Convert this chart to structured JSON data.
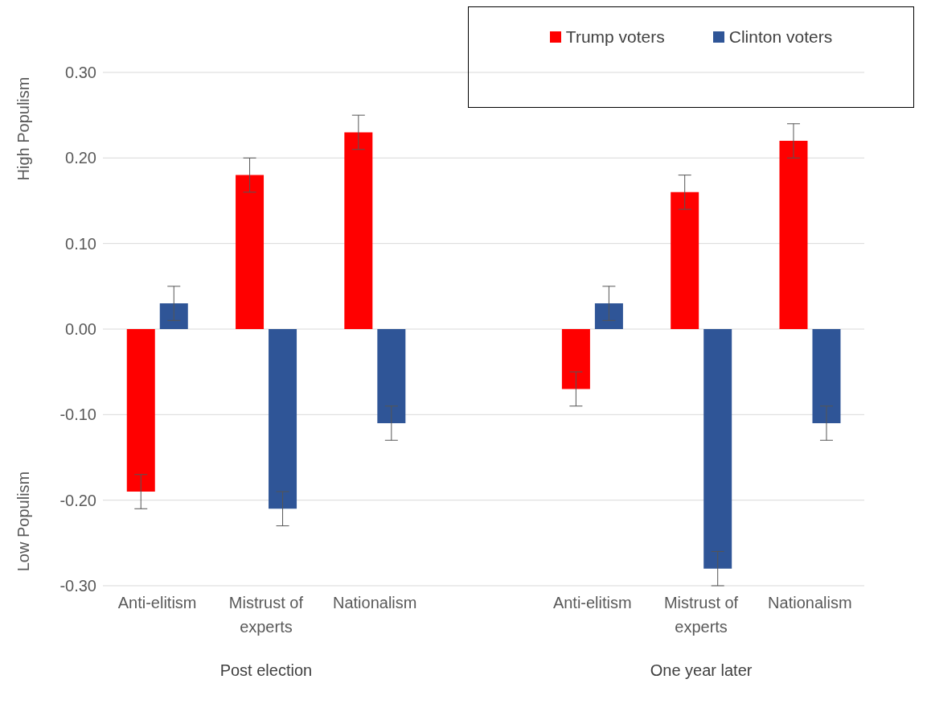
{
  "chart_data": {
    "type": "bar",
    "categories": [
      "Anti-elitism",
      "Mistrust of experts",
      "Nationalism",
      null,
      "Anti-elitism",
      "Mistrust of experts",
      "Nationalism"
    ],
    "series": [
      {
        "name": "Trump voters",
        "color": "#ff0000",
        "values": [
          -0.19,
          0.18,
          0.23,
          null,
          -0.07,
          0.16,
          0.22
        ],
        "errors": [
          0.02,
          0.02,
          0.02,
          null,
          0.02,
          0.02,
          0.02
        ]
      },
      {
        "name": "Clinton voters",
        "color": "#2f5597",
        "values": [
          0.03,
          -0.21,
          -0.11,
          null,
          0.03,
          -0.28,
          -0.11
        ],
        "errors": [
          0.02,
          0.02,
          0.02,
          null,
          0.02,
          0.02,
          0.02
        ]
      }
    ],
    "ylim": [
      -0.3,
      0.3
    ],
    "yticks": [
      {
        "value": -0.3,
        "label": "-0.30"
      },
      {
        "value": -0.2,
        "label": "-0.20"
      },
      {
        "value": -0.1,
        "label": "-0.10"
      },
      {
        "value": 0,
        "label": "0.00"
      },
      {
        "value": 0.1,
        "label": "0.10"
      },
      {
        "value": 0.2,
        "label": "0.20"
      },
      {
        "value": 0.3,
        "label": "0.30"
      }
    ],
    "grid": "y",
    "legend": "top right",
    "annotations": [
      "Post election",
      "One year later",
      "High Populism",
      "Low Populism"
    ]
  }
}
